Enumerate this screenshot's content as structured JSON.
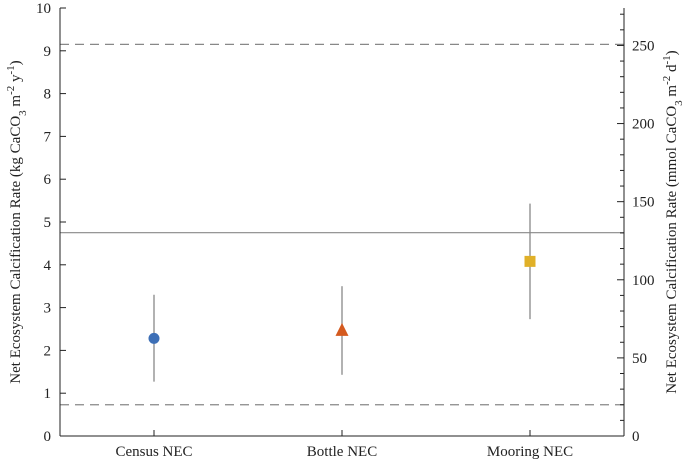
{
  "chart_data": {
    "type": "scatter",
    "categories": [
      "Census NEC",
      "Bottle NEC",
      "Mooring NEC"
    ],
    "series": [
      {
        "points": [
          {
            "category": "Census NEC",
            "value": 2.28,
            "err_low": 1.27,
            "err_high": 3.3,
            "marker": "circle",
            "color": "#3d6fb6"
          },
          {
            "category": "Bottle NEC",
            "value": 2.48,
            "err_low": 1.43,
            "err_high": 3.5,
            "marker": "triangle",
            "color": "#d45a1f"
          },
          {
            "category": "Mooring NEC",
            "value": 4.08,
            "err_low": 2.73,
            "err_high": 5.43,
            "marker": "square",
            "color": "#e0b028"
          }
        ]
      }
    ],
    "y_left": {
      "label_parts": [
        "Net Ecosystem Calcification Rate (kg CaCO",
        "3",
        " m",
        "-2",
        " y",
        "-1",
        ")"
      ],
      "ylim": [
        0,
        10
      ],
      "ticks": [
        "0",
        "1",
        "2",
        "3",
        "4",
        "5",
        "6",
        "7",
        "8",
        "9",
        "10"
      ]
    },
    "y_right": {
      "label_parts": [
        "Net Ecosystem Calcification Rate (mmol CaCO",
        "3",
        " m",
        "-2",
        " d",
        "-1",
        ")"
      ],
      "ylim_left_equivalent": [
        0,
        10
      ],
      "scale_to_left": 0.0365,
      "ticks": [
        "0",
        "50",
        "100",
        "150",
        "200",
        "250"
      ]
    },
    "reference_lines": [
      {
        "value": 4.75,
        "style": "solid",
        "color": "#888888"
      },
      {
        "value": 9.15,
        "style": "dashed",
        "color": "#888888"
      },
      {
        "value": 0.73,
        "style": "dashed",
        "color": "#888888"
      }
    ],
    "error_bar_color": "#888888",
    "grid": false
  }
}
